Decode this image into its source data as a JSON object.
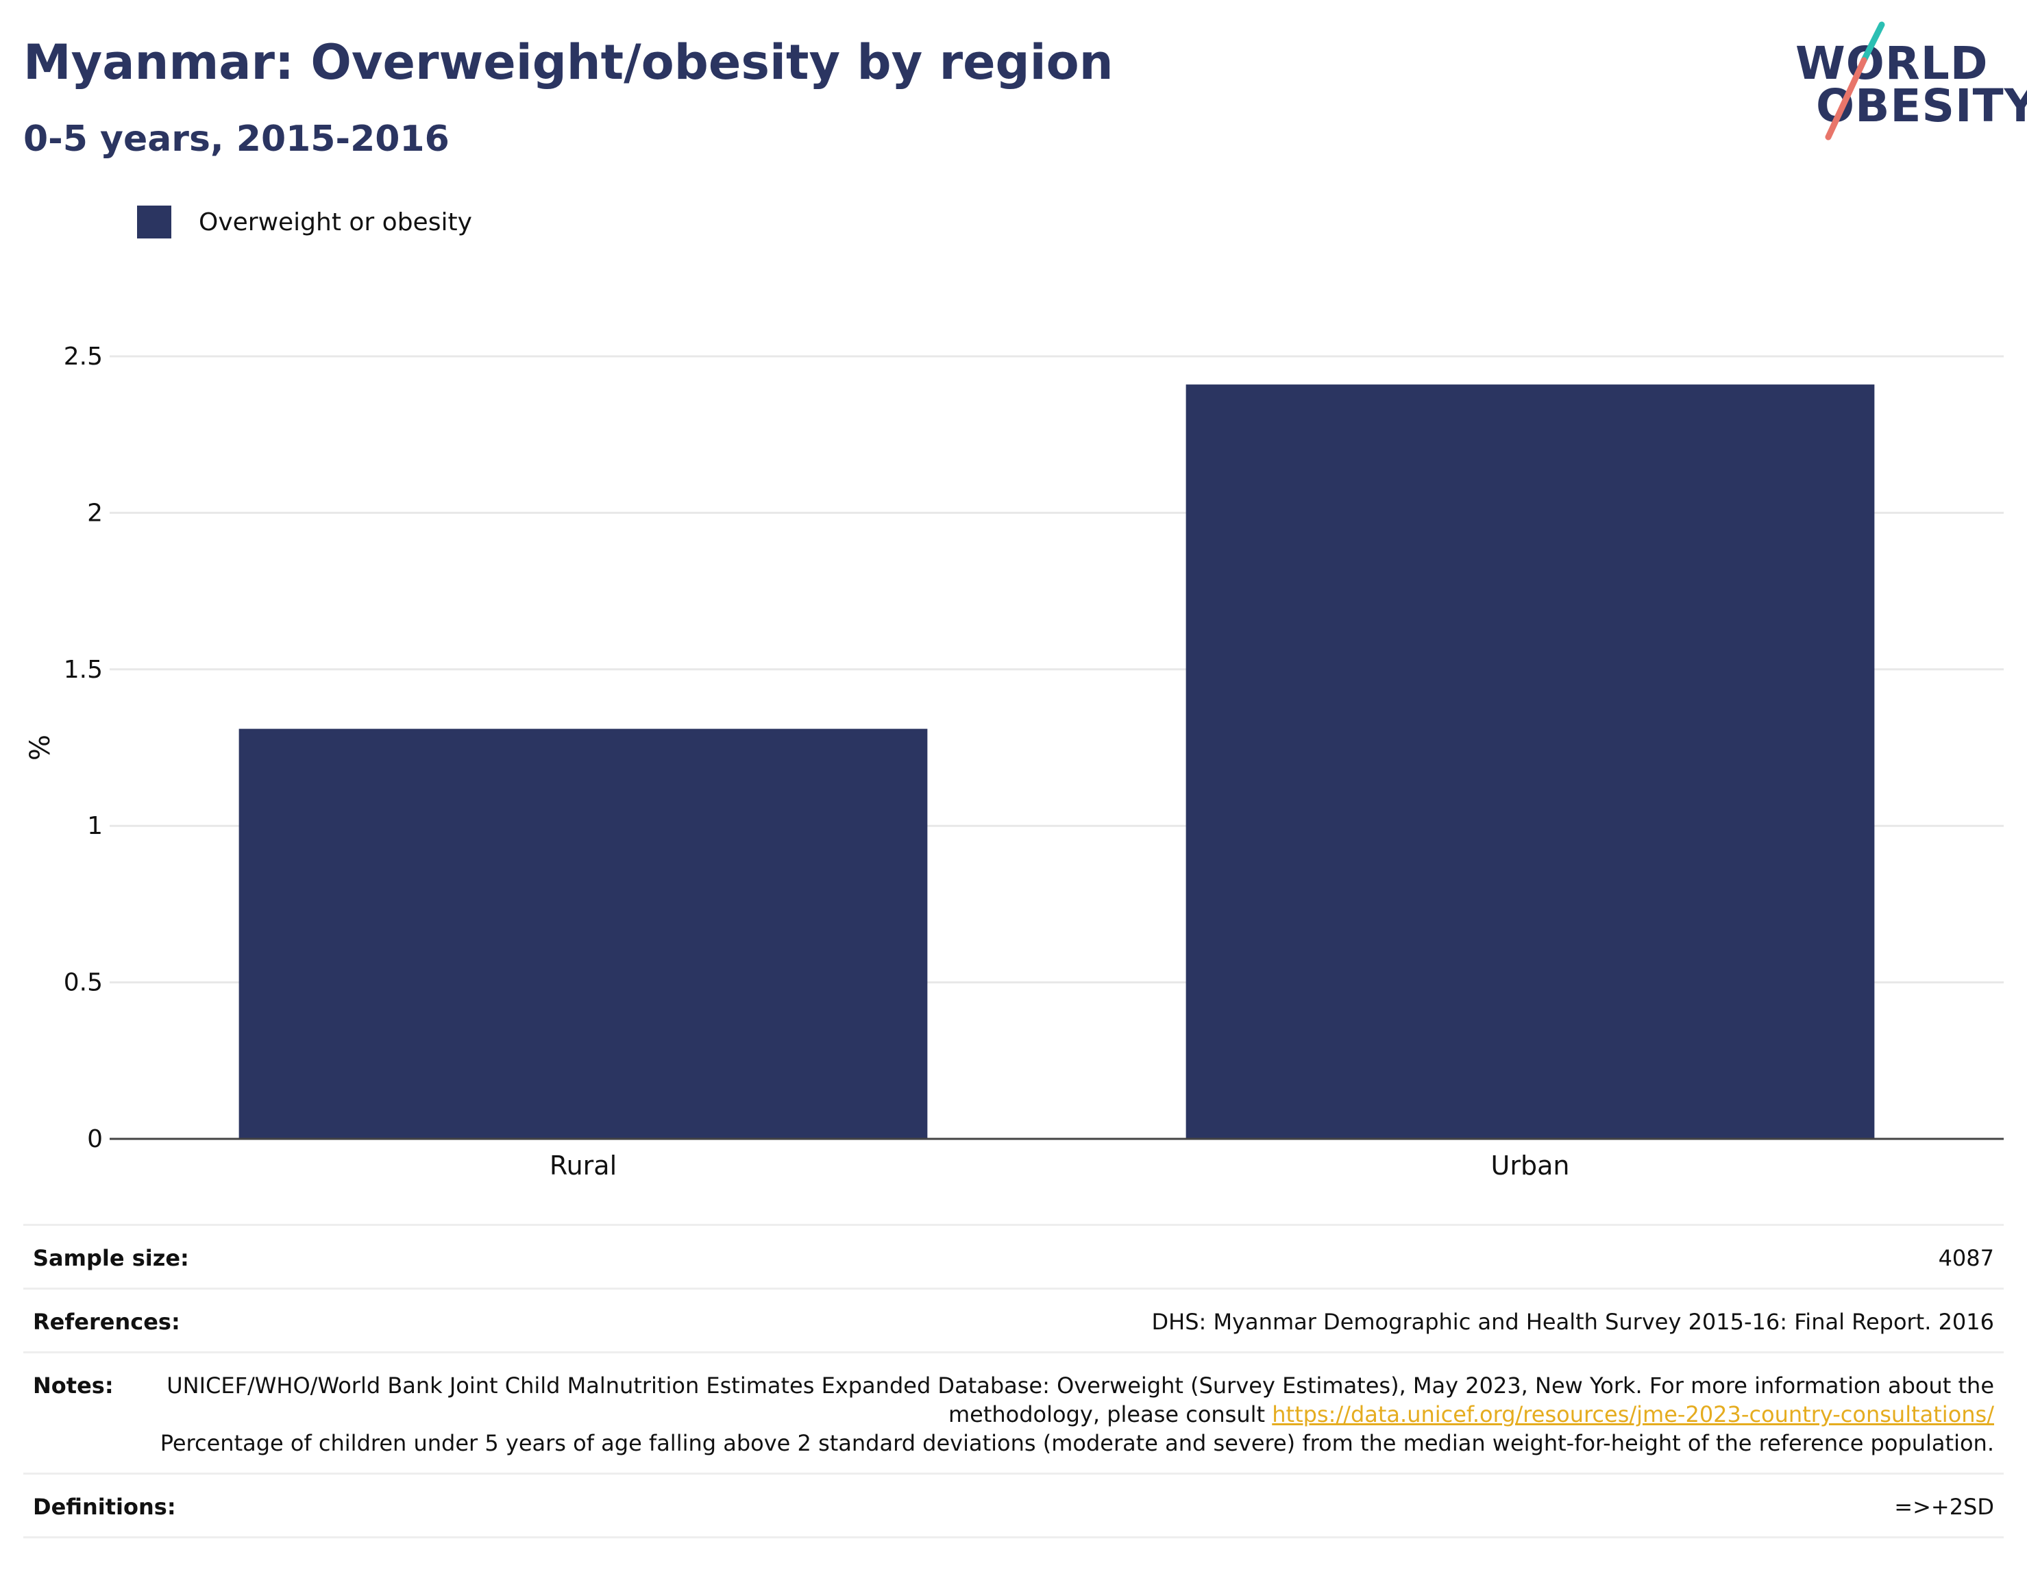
{
  "header": {
    "title": "Myanmar: Overweight/obesity by region",
    "subtitle": "0-5 years, 2015-2016"
  },
  "logo": {
    "line1": "WORLD",
    "line2": "OBESITY",
    "colors": {
      "text": "#2b3561",
      "slash_top": "#2bbfb3",
      "slash_bottom": "#e8756a"
    }
  },
  "legend": {
    "label": "Overweight or obesity",
    "color": "#2b3561"
  },
  "chart_data": {
    "type": "bar",
    "categories": [
      "Rural",
      "Urban"
    ],
    "series": [
      {
        "name": "Overweight or obesity",
        "values": [
          1.31,
          2.41
        ],
        "color": "#2b3561"
      }
    ],
    "ylabel": "%",
    "xlabel": "",
    "ylim": [
      0,
      2.5
    ],
    "yticks": [
      0,
      0.5,
      1,
      1.5,
      2,
      2.5
    ],
    "ytick_labels": [
      "0",
      "0.5",
      "1",
      "1.5",
      "2",
      "2.5"
    ],
    "grid": true,
    "legend_position": "top-left"
  },
  "info": {
    "sample_size_label": "Sample size:",
    "sample_size_value": "4087",
    "references_label": "References:",
    "references_value": "DHS: Myanmar Demographic and Health Survey 2015-16: Final Report. 2016",
    "notes_label": "Notes:",
    "notes_text_before": "UNICEF/WHO/World Bank Joint Child Malnutrition Estimates Expanded Database: Overweight (Survey Estimates), May 2023, New York. For more information about the methodology, please consult ",
    "notes_link": "https://data.unicef.org/resources/jme-2023-country-consultations/",
    "notes_text_after": "Percentage of children under 5 years of age falling above 2 standard deviations (moderate and severe) from the median weight-for-height of the reference population.",
    "definitions_label": "Definitions:",
    "definitions_value": "=>+2SD"
  }
}
